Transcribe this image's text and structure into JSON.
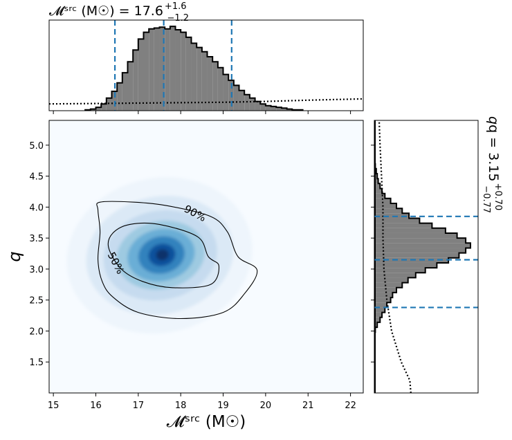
{
  "chart_data": [
    {
      "panel": "joint-density",
      "type": "heatmap",
      "xlabel": "𝓜ˢʳᶜ (M☉)",
      "ylabel": "q",
      "xlim": [
        14.9,
        22.3
      ],
      "ylim": [
        1.0,
        5.4
      ],
      "x_ticks": [
        15,
        16,
        17,
        18,
        19,
        20,
        21,
        22
      ],
      "y_ticks": [
        1.5,
        2.0,
        2.5,
        3.0,
        3.5,
        4.0,
        4.5,
        5.0
      ],
      "x_tick_labels": [
        "15",
        "16",
        "17",
        "18",
        "19",
        "20",
        "21",
        "22"
      ],
      "y_tick_labels": [
        "1.5",
        "2.0",
        "2.5",
        "3.0",
        "3.5",
        "4.0",
        "4.5",
        "5.0"
      ],
      "colormap": "Blues",
      "density_peak": {
        "x": 17.5,
        "y": 3.22
      },
      "contours": [
        {
          "label": "90%",
          "points": [
            [
              16.1,
              4.08
            ],
            [
              16.9,
              4.08
            ],
            [
              17.7,
              4.02
            ],
            [
              18.7,
              3.85
            ],
            [
              19.1,
              3.6
            ],
            [
              19.35,
              3.2
            ],
            [
              19.8,
              2.98
            ],
            [
              19.5,
              2.6
            ],
            [
              19.0,
              2.3
            ],
            [
              18.0,
              2.2
            ],
            [
              17.0,
              2.3
            ],
            [
              16.4,
              2.55
            ],
            [
              16.15,
              2.8
            ],
            [
              16.05,
              3.15
            ],
            [
              16.1,
              3.6
            ],
            [
              16.05,
              3.95
            ]
          ]
        },
        {
          "label": "50%",
          "points": [
            [
              16.4,
              3.58
            ],
            [
              16.8,
              3.72
            ],
            [
              17.5,
              3.72
            ],
            [
              18.4,
              3.52
            ],
            [
              18.65,
              3.2
            ],
            [
              18.9,
              3.05
            ],
            [
              18.7,
              2.75
            ],
            [
              17.8,
              2.7
            ],
            [
              17.1,
              2.8
            ],
            [
              16.6,
              3.0
            ],
            [
              16.3,
              3.35
            ]
          ]
        }
      ]
    },
    {
      "panel": "marginal-chirp-mass",
      "type": "bar",
      "title": "𝓜ˢʳᶜ (M☉) = 17.6",
      "title_sup": "+1.6",
      "title_sub": "−1.2",
      "bin_edges_start": 15.75,
      "bin_width": 0.125,
      "values": [
        1,
        2,
        4,
        8,
        15,
        23,
        33,
        45,
        58,
        72,
        85,
        93,
        97,
        98,
        99,
        97,
        100,
        96,
        93,
        87,
        80,
        75,
        70,
        64,
        58,
        51,
        43,
        36,
        30,
        24,
        19,
        15,
        11,
        8,
        6,
        5,
        4,
        3,
        2,
        1,
        1
      ],
      "prior_values": [
        [
          14.9,
          8
        ],
        [
          16.0,
          8.5
        ],
        [
          17.0,
          9
        ],
        [
          18.0,
          9.5
        ],
        [
          19.0,
          10
        ],
        [
          20.0,
          11
        ],
        [
          21.0,
          12.5
        ],
        [
          22.3,
          14
        ]
      ],
      "quantile_lines": [
        16.45,
        17.6,
        19.2
      ],
      "ylim": [
        0,
        105
      ]
    },
    {
      "panel": "marginal-mass-ratio",
      "type": "bar",
      "orientation": "horizontal",
      "title": "q = 3.15",
      "title_sup": "+0.70",
      "title_sub": "−0.77",
      "bin_edges_start": 1.9,
      "bin_width": 0.08,
      "values": [
        0,
        1,
        3,
        6,
        8,
        11,
        13,
        17,
        19,
        23,
        29,
        35,
        43,
        53,
        65,
        77,
        88,
        95,
        100,
        95,
        86,
        74,
        60,
        47,
        36,
        29,
        23,
        17,
        11,
        8,
        6,
        4,
        3,
        2,
        1,
        0
      ],
      "prior_values": [
        [
          1.0,
          38
        ],
        [
          1.2,
          37
        ],
        [
          1.5,
          28
        ],
        [
          2.0,
          18
        ],
        [
          2.5,
          13
        ],
        [
          3.0,
          10
        ],
        [
          3.5,
          9
        ],
        [
          4.0,
          9
        ],
        [
          4.5,
          7.5
        ],
        [
          5.0,
          6
        ],
        [
          5.4,
          5
        ]
      ],
      "quantile_lines": [
        2.38,
        3.15,
        3.85
      ],
      "xlim": [
        0,
        105
      ]
    }
  ],
  "colors": {
    "histogram_fill": "#808080",
    "histogram_edge": "#000000",
    "quantile_line": "#1f77b4",
    "density_low": "#f7fbff",
    "density_high": "#08306b"
  }
}
